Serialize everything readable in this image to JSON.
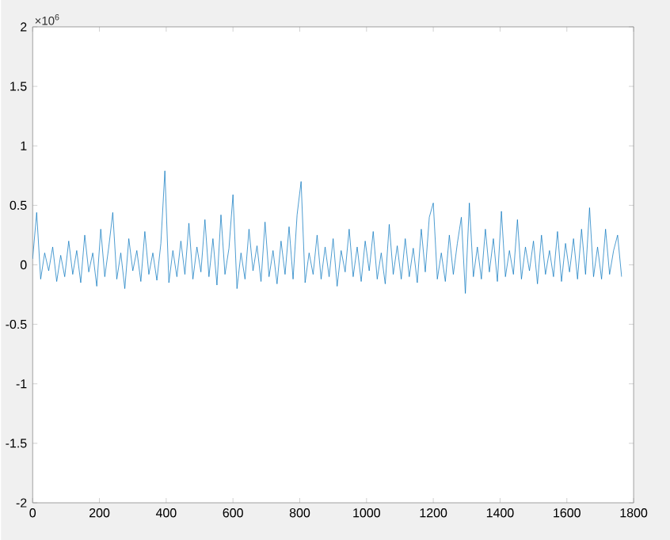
{
  "chart_data": {
    "type": "line",
    "annotations": [
      "×10$^{6}$"
    ],
    "xlim": [
      0,
      1800
    ],
    "ylim": [
      -2,
      2
    ],
    "xticks": [
      0,
      200,
      400,
      600,
      800,
      1000,
      1200,
      1400,
      1600,
      1800
    ],
    "yticks": [
      -2,
      -1.5,
      -1,
      -0.5,
      0,
      0.5,
      1,
      1.5,
      2
    ],
    "series": [
      {
        "color": "#0072bd",
        "x": [
          0,
          12,
          24,
          36,
          48,
          60,
          72,
          84,
          96,
          108,
          120,
          132,
          144,
          156,
          168,
          180,
          192,
          204,
          216,
          228,
          240,
          252,
          264,
          276,
          288,
          300,
          312,
          324,
          336,
          348,
          360,
          372,
          384,
          396,
          408,
          420,
          432,
          444,
          456,
          468,
          480,
          492,
          504,
          516,
          528,
          540,
          552,
          564,
          576,
          588,
          600,
          612,
          624,
          636,
          648,
          660,
          672,
          684,
          696,
          708,
          720,
          732,
          744,
          756,
          768,
          780,
          792,
          804,
          816,
          828,
          840,
          852,
          864,
          876,
          888,
          900,
          912,
          924,
          936,
          948,
          960,
          972,
          984,
          996,
          1008,
          1020,
          1032,
          1044,
          1056,
          1068,
          1080,
          1092,
          1104,
          1116,
          1128,
          1140,
          1152,
          1164,
          1176,
          1188,
          1200,
          1212,
          1224,
          1236,
          1248,
          1260,
          1272,
          1284,
          1296,
          1308,
          1320,
          1332,
          1344,
          1356,
          1368,
          1380,
          1392,
          1404,
          1416,
          1428,
          1440,
          1452,
          1464,
          1476,
          1488,
          1500,
          1512,
          1524,
          1536,
          1548,
          1560,
          1572,
          1584,
          1596,
          1608,
          1620,
          1632,
          1644,
          1656,
          1668,
          1680,
          1692,
          1704,
          1716,
          1728,
          1740,
          1752,
          1764
        ],
        "values": [
          0.05,
          0.44,
          -0.12,
          0.1,
          -0.05,
          0.15,
          -0.14,
          0.08,
          -0.1,
          0.2,
          -0.08,
          0.12,
          -0.15,
          0.25,
          -0.06,
          0.1,
          -0.18,
          0.3,
          -0.1,
          0.15,
          0.44,
          -0.12,
          0.1,
          -0.2,
          0.22,
          -0.05,
          0.12,
          -0.14,
          0.28,
          -0.08,
          0.1,
          -0.13,
          0.18,
          0.79,
          -0.15,
          0.12,
          -0.1,
          0.2,
          -0.08,
          0.35,
          -0.12,
          0.15,
          -0.06,
          0.38,
          -0.1,
          0.22,
          -0.17,
          0.42,
          -0.08,
          0.14,
          0.59,
          -0.2,
          0.1,
          -0.12,
          0.3,
          -0.05,
          0.16,
          -0.14,
          0.36,
          -0.1,
          0.12,
          -0.16,
          0.2,
          -0.08,
          0.32,
          -0.12,
          0.42,
          0.7,
          -0.15,
          0.1,
          -0.08,
          0.25,
          -0.12,
          0.15,
          -0.1,
          0.22,
          -0.18,
          0.12,
          -0.06,
          0.3,
          -0.1,
          0.15,
          -0.14,
          0.2,
          -0.05,
          0.28,
          -0.12,
          0.1,
          -0.16,
          0.34,
          -0.08,
          0.16,
          -0.12,
          0.22,
          -0.1,
          0.14,
          -0.15,
          0.3,
          -0.06,
          0.4,
          0.52,
          -0.12,
          0.1,
          -0.14,
          0.25,
          -0.08,
          0.18,
          0.4,
          -0.24,
          0.52,
          -0.1,
          0.15,
          -0.12,
          0.3,
          -0.06,
          0.22,
          -0.14,
          0.45,
          -0.1,
          0.12,
          -0.08,
          0.38,
          -0.12,
          0.15,
          -0.05,
          0.2,
          -0.16,
          0.25,
          -0.08,
          0.12,
          -0.1,
          0.28,
          -0.14,
          0.18,
          -0.06,
          0.22,
          -0.12,
          0.3,
          -0.08,
          0.48,
          -0.1,
          0.15,
          -0.12,
          0.3,
          -0.08,
          0.12,
          0.25,
          -0.1
        ]
      }
    ]
  }
}
